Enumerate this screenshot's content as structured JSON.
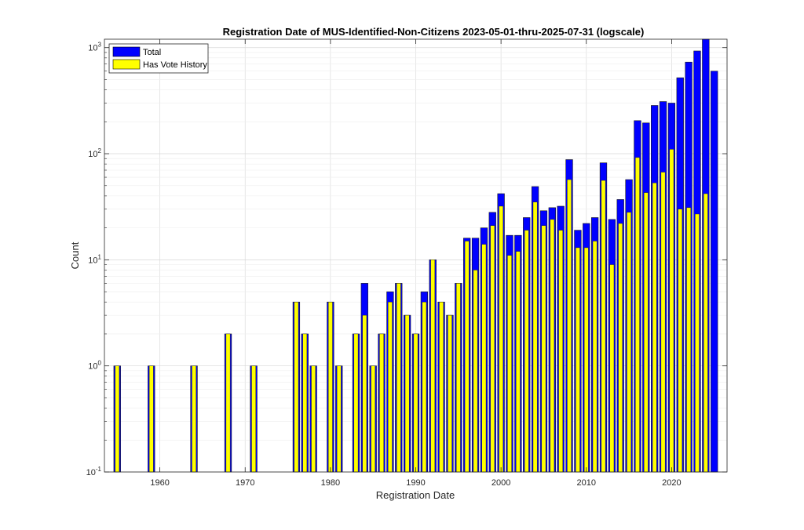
{
  "chart_data": {
    "type": "bar",
    "title": "Registration Date of MUS-Identified-Non-Citizens 2023-05-01-thru-2025-07-31 (logscale)",
    "xlabel": "Registration Date",
    "ylabel": "Count",
    "yscale": "log",
    "xlim": [
      1953.5,
      2026.5
    ],
    "ylim": [
      0.1,
      1200
    ],
    "x_ticks": [
      1960,
      1970,
      1980,
      1990,
      2000,
      2010,
      2020
    ],
    "y_ticks": [
      {
        "value": 0.1,
        "base": "10",
        "exp": "-1"
      },
      {
        "value": 1,
        "base": "10",
        "exp": "0"
      },
      {
        "value": 10,
        "base": "10",
        "exp": "1"
      },
      {
        "value": 100,
        "base": "10",
        "exp": "2"
      },
      {
        "value": 1000,
        "base": "10",
        "exp": "3"
      }
    ],
    "grid": true,
    "legend_position": "top-left",
    "x": [
      1955,
      1959,
      1964,
      1968,
      1971,
      1976,
      1977,
      1978,
      1980,
      1981,
      1983,
      1984,
      1985,
      1986,
      1987,
      1988,
      1989,
      1990,
      1991,
      1992,
      1993,
      1994,
      1995,
      1996,
      1997,
      1998,
      1999,
      2000,
      2001,
      2002,
      2003,
      2004,
      2005,
      2006,
      2007,
      2008,
      2009,
      2010,
      2011,
      2012,
      2013,
      2014,
      2015,
      2016,
      2017,
      2018,
      2019,
      2020,
      2021,
      2022,
      2023,
      2024,
      2025
    ],
    "series": [
      {
        "name": "Total",
        "color": "#0000ff",
        "values": [
          1,
          1,
          1,
          2,
          1,
          4,
          2,
          1,
          4,
          1,
          2,
          6,
          1,
          2,
          5,
          6,
          3,
          2,
          5,
          10,
          4,
          3,
          6,
          16,
          16,
          20,
          28,
          42,
          17,
          17,
          25,
          49,
          29,
          31,
          32,
          88,
          19,
          22,
          25,
          82,
          24,
          37,
          57,
          205,
          195,
          285,
          310,
          300,
          520,
          730,
          930,
          1200,
          600
        ]
      },
      {
        "name": "Has Vote History",
        "color": "#ffff00",
        "values": [
          1,
          1,
          1,
          2,
          1,
          4,
          2,
          1,
          4,
          1,
          2,
          3,
          1,
          2,
          4,
          6,
          3,
          2,
          4,
          10,
          4,
          3,
          6,
          15,
          8,
          14,
          21,
          32,
          11,
          12,
          19,
          35,
          21,
          24,
          19,
          57,
          13,
          13,
          15,
          56,
          9,
          22,
          28,
          92,
          43,
          53,
          67,
          110,
          30,
          31,
          27,
          42,
          0
        ]
      }
    ]
  }
}
